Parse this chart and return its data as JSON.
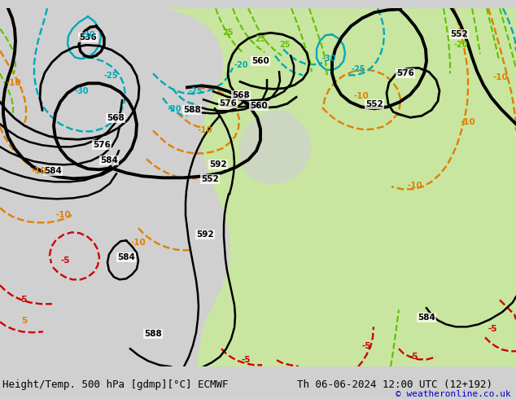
{
  "title_left": "Height/Temp. 500 hPa [gdmp][°C] ECMWF",
  "title_right": "Th 06-06-2024 12:00 UTC (12+192)",
  "copyright": "© weatheronline.co.uk",
  "bg_color": "#d0d0d0",
  "land_color": "#c8e6a0",
  "gray_land_color": "#b8b8b8",
  "contour_color_black": "#000000",
  "contour_color_orange": "#e08000",
  "contour_color_cyan": "#00a8b8",
  "contour_color_green": "#60c000",
  "contour_color_red": "#d00000",
  "font_size_title": 9,
  "font_size_label": 8,
  "font_size_copyright": 8
}
